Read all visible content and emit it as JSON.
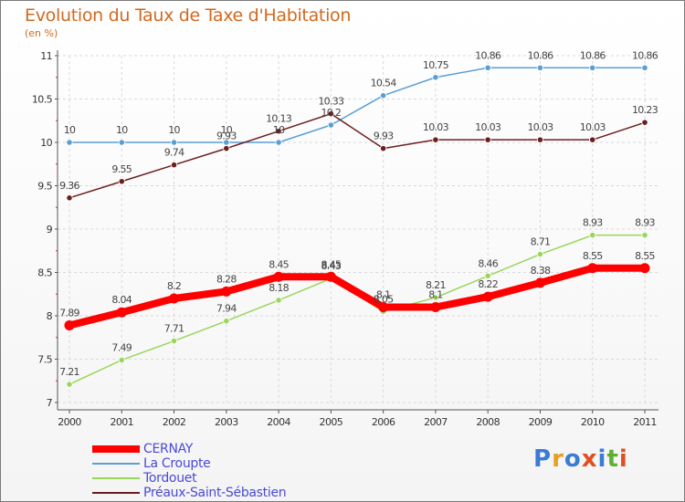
{
  "title": "Evolution du Taux de Taxe d'Habitation",
  "subtitle": "(en %)",
  "logo": {
    "text": "Proxiti",
    "letters": [
      "P",
      "r",
      "o",
      "x",
      "i",
      "t",
      "i"
    ],
    "colors": [
      "#3a7bd5",
      "#e8a020",
      "#3a7bd5",
      "#e05020",
      "#3a7bd5",
      "#60b030",
      "#e05020"
    ]
  },
  "chart_data": {
    "type": "line",
    "x": [
      "2000",
      "2001",
      "2002",
      "2003",
      "2004",
      "2005",
      "2006",
      "2007",
      "2008",
      "2009",
      "2010",
      "2011"
    ],
    "y_ticks": [
      "7",
      "7.5",
      "8",
      "8.5",
      "9",
      "9.5",
      "10",
      "10.5",
      "11"
    ],
    "ylim": [
      7,
      11
    ],
    "grid": true,
    "legend_position": "bottom-left",
    "series": [
      {
        "name": "CERNAY",
        "color": "#ff0000",
        "values": [
          7.89,
          8.04,
          8.2,
          8.28,
          8.45,
          8.45,
          8.1,
          8.1,
          8.22,
          8.38,
          8.55,
          8.55
        ],
        "labels": [
          "7.89",
          "8.04",
          "8.2",
          "8.28",
          "8.45",
          "8.45",
          "8.1",
          "8.1",
          "8.22",
          "8.38",
          "8.55",
          "8.55"
        ]
      },
      {
        "name": "La Croupte",
        "color": "#5a9fd4",
        "values": [
          10,
          10,
          10,
          10,
          10,
          10.2,
          10.54,
          10.75,
          10.86,
          10.86,
          10.86,
          10.86
        ],
        "labels": [
          "10",
          "10",
          "10",
          "10",
          "10",
          "10.2",
          "10.54",
          "10.75",
          "10.86",
          "10.86",
          "10.86",
          "10.86"
        ]
      },
      {
        "name": "Tordouet",
        "color": "#9ad65a",
        "values": [
          7.21,
          7.49,
          7.71,
          7.94,
          8.18,
          8.43,
          8.05,
          8.21,
          8.46,
          8.71,
          8.93,
          8.93
        ],
        "labels": [
          "7.21",
          "7.49",
          "7.71",
          "7.94",
          "8.18",
          "8.43",
          "8.05",
          "8.21",
          "8.46",
          "8.71",
          "8.93",
          "8.93"
        ]
      },
      {
        "name": "Préaux-Saint-Sébastien",
        "color": "#6b1f1f",
        "values": [
          9.36,
          9.55,
          9.74,
          9.93,
          10.13,
          10.33,
          9.93,
          10.03,
          10.03,
          10.03,
          10.03,
          10.23
        ],
        "labels": [
          "9.36",
          "9.55",
          "9.74",
          "9.93",
          "10.13",
          "10.33",
          "9.93",
          "10.03",
          "10.03",
          "10.03",
          "10.03",
          "10.23"
        ]
      }
    ]
  }
}
